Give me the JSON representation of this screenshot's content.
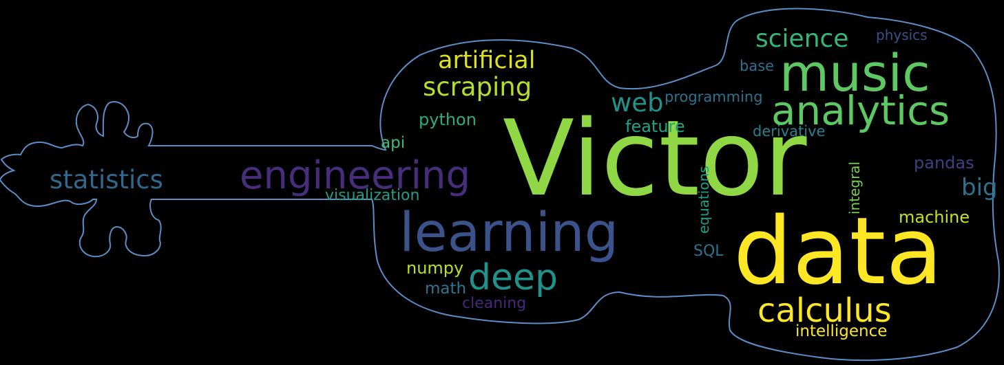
{
  "outline": {
    "shape": "violin-silhouette",
    "color": "#5b8fc7"
  },
  "words": [
    {
      "text": "Victor",
      "color": "#8fd744"
    },
    {
      "text": "data",
      "color": "#fde725"
    },
    {
      "text": "learning",
      "color": "#3b528b"
    },
    {
      "text": "music",
      "color": "#5ec962"
    },
    {
      "text": "analytics",
      "color": "#5ec962"
    },
    {
      "text": "engineering",
      "color": "#472d7b"
    },
    {
      "text": "deep",
      "color": "#21918c"
    },
    {
      "text": "calculus",
      "color": "#fde725"
    },
    {
      "text": "statistics",
      "color": "#31688e"
    },
    {
      "text": "scraping",
      "color": "#b5de2b"
    },
    {
      "text": "artificial",
      "color": "#dde318"
    },
    {
      "text": "science",
      "color": "#35b779"
    },
    {
      "text": "web",
      "color": "#21918c"
    },
    {
      "text": "big",
      "color": "#2c728e"
    },
    {
      "text": "machine",
      "color": "#c8e020"
    },
    {
      "text": "python",
      "color": "#28ae80"
    },
    {
      "text": "feature",
      "color": "#20a386"
    },
    {
      "text": "pandas",
      "color": "#433e85"
    },
    {
      "text": "numpy",
      "color": "#bddf26"
    },
    {
      "text": "math",
      "color": "#2a788e"
    },
    {
      "text": "api",
      "color": "#3dbc74"
    },
    {
      "text": "visualization",
      "color": "#1f9e89"
    },
    {
      "text": "cleaning",
      "color": "#482878"
    },
    {
      "text": "intelligence",
      "color": "#fde725"
    },
    {
      "text": "programming",
      "color": "#2c728e"
    },
    {
      "text": "derivative",
      "color": "#26828e"
    },
    {
      "text": "physics",
      "color": "#3b528b"
    },
    {
      "text": "base",
      "color": "#2c728e"
    },
    {
      "text": "SQL",
      "color": "#2c728e"
    },
    {
      "text": "equations",
      "color": "#1fa088"
    },
    {
      "text": "integral",
      "color": "#7ad151"
    }
  ]
}
